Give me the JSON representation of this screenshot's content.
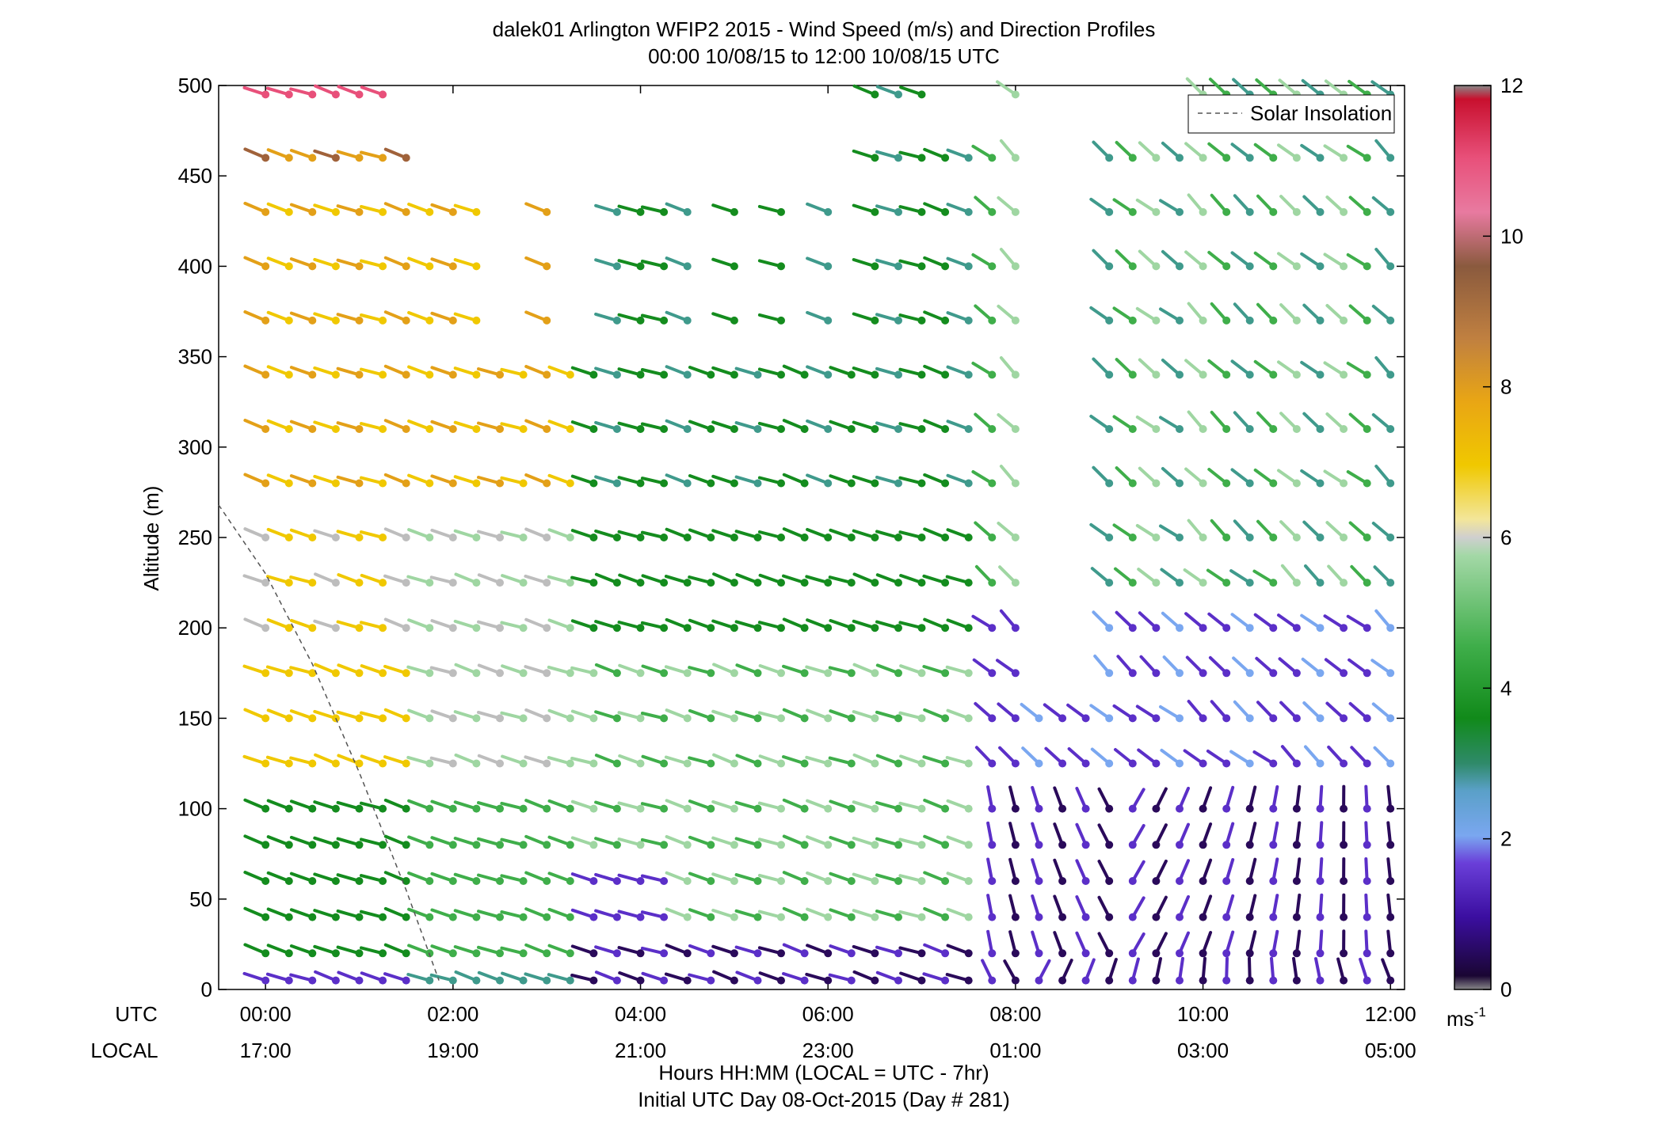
{
  "chart_data": {
    "type": "wind-barb-profile",
    "title_line1": "dalek01 Arlington WFIP2 2015 - Wind Speed (m/s) and Direction Profiles",
    "title_line2": "00:00 10/08/15 to 12:00 10/08/15  UTC",
    "ylabel": "Altitude (m)",
    "xlabel_line1": "Hours HH:MM  (LOCAL = UTC - 7hr)",
    "xlabel_line2": "Initial UTC Day 08-Oct-2015 (Day # 281)",
    "row_label_utc": "UTC",
    "row_label_local": "LOCAL",
    "ylim": [
      0,
      500
    ],
    "yticks": [
      0,
      50,
      100,
      150,
      200,
      250,
      300,
      350,
      400,
      450,
      500
    ],
    "xlim_hours": [
      -0.5,
      12.15
    ],
    "xticks_hours": [
      0,
      2,
      4,
      6,
      8,
      10,
      12
    ],
    "xticks_utc": [
      "00:00",
      "02:00",
      "04:00",
      "06:00",
      "08:00",
      "10:00",
      "12:00"
    ],
    "xticks_local": [
      "17:00",
      "19:00",
      "21:00",
      "23:00",
      "01:00",
      "03:00",
      "05:00"
    ],
    "legend": {
      "label": "Solar Insolation",
      "placement": "top-right"
    },
    "colorbar": {
      "min": 0,
      "max": 12,
      "ticks": [
        0,
        2,
        4,
        6,
        8,
        10,
        12
      ],
      "unit_base": "ms",
      "unit_exp": "-1"
    },
    "solar_insolation": {
      "hours": [
        -0.5,
        0.0,
        0.5,
        1.0,
        1.5,
        1.85
      ],
      "altitude_m": [
        268,
        230,
        180,
        120,
        55,
        5
      ]
    },
    "colors": {
      "calm_low": "#2a0a5a",
      "low": "#5b2fc8",
      "lightblue": "#7aa7f0",
      "teal": "#3f9a8c",
      "green_dark": "#148c1e",
      "green": "#3fae4a",
      "green_light": "#9fd6a2",
      "gray": "#bdbdbd",
      "yellow": "#f0c800",
      "orange": "#e3a018",
      "brown": "#a0623a",
      "pink": "#e8507a",
      "red": "#d81e3c"
    },
    "profile_altitudes_m": [
      5,
      20,
      40,
      60,
      80,
      100,
      125,
      150,
      175,
      200,
      225,
      250,
      280,
      310,
      340,
      370,
      400,
      430,
      460,
      495
    ],
    "wind_speed_regime_notes": [
      "00:00-01:30 UTC upper levels (>250 m) 6-10 m/s yellow/orange/brown, top levels to 11 m/s",
      "02:00-07:30 UTC lower/mid levels 3-5 m/s green",
      "08:00-12:00 UTC below 100 m 1-2 m/s purple, above 100 m 2-5 m/s blue/green"
    ]
  }
}
